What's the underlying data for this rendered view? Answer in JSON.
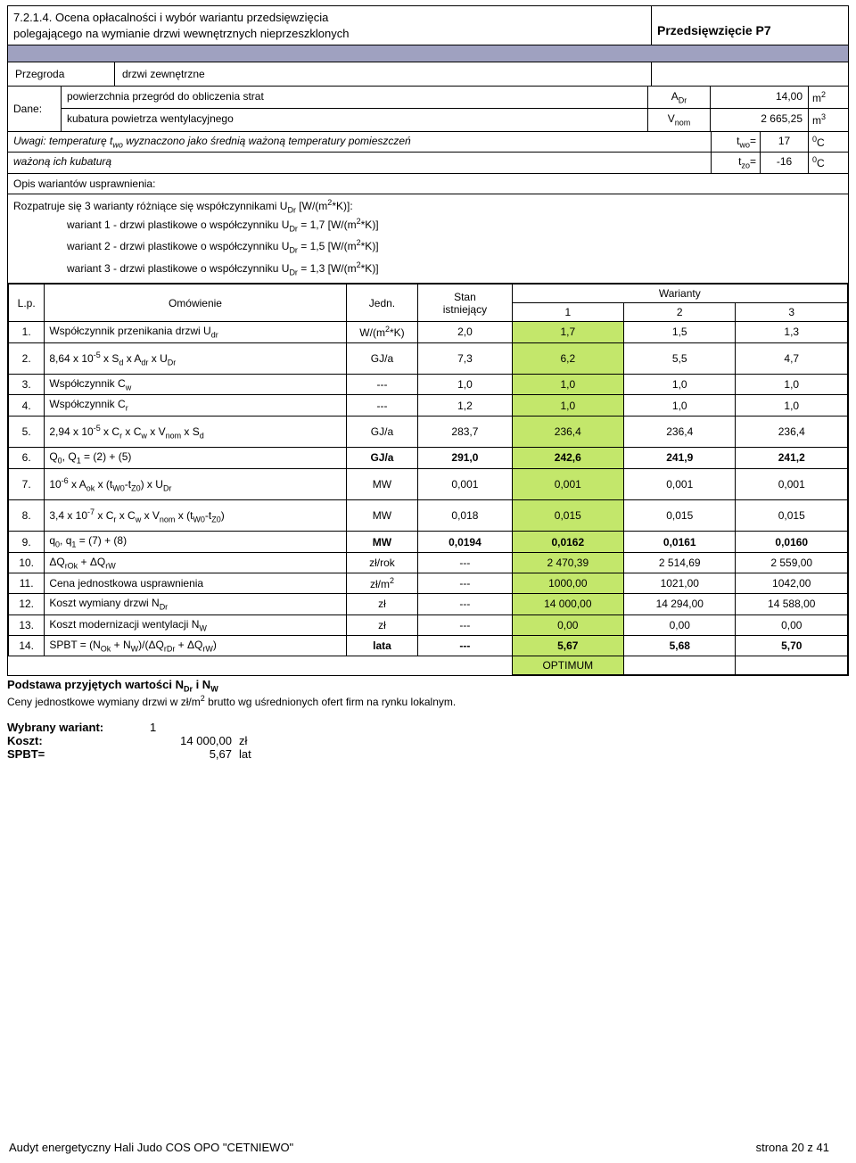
{
  "section_number": "7.2.1.4.",
  "section_title": "Ocena opłacalności i wybór wariantu przedsięwzięcia",
  "section_subtitle": "polegającego na wymianie drzwi wewnętrznych nieprzeszklonych",
  "project_label": "Przedsięwzięcie P7",
  "przegroda_label": "Przegroda",
  "przegroda_value": "drzwi zewnętrzne",
  "dane_label": "Dane:",
  "dane": [
    {
      "desc": "powierzchnia przegród do obliczenia strat",
      "sym": "A<sub>Dr</sub>",
      "val": "14,00",
      "unit": "m<sup>2</sup>"
    },
    {
      "desc": "kubatura powietrza wentylacyjnego",
      "sym": "V<sub>nom</sub>",
      "val": "2 665,25",
      "unit": "m<sup>3</sup>"
    }
  ],
  "uwagi_text": "Uwagi: temperaturę t<sub>wo</sub> wyznaczono jako średnią ważoną temperatury pomieszczeń ważoną ich kubaturą",
  "uwagi_rows": [
    {
      "sym": "t<sub>wo</sub>=",
      "val": "17",
      "unit": "<sup>0</sup>C"
    },
    {
      "sym": "t<sub>zo</sub>=",
      "val": "-16",
      "unit": "<sup>0</sup>C"
    }
  ],
  "opis_label": "Opis wariantów usprawnienia:",
  "rozpat_text": "Rozpatruje się 3 warianty różniące się współczynnikami U<sub>Dr</sub> [W/(m<sup>2</sup>*K)]:",
  "warianty_desc": [
    "wariant 1 - drzwi plastikowe o współczynniku U<sub>Dr</sub> = 1,7 [W/(m<sup>2</sup>*K)]",
    "wariant 2 - drzwi plastikowe o współczynniku U<sub>Dr</sub> = 1,5 [W/(m<sup>2</sup>*K)]",
    "wariant 3 - drzwi plastikowe o współczynniku U<sub>Dr</sub> = 1,3 [W/(m<sup>2</sup>*K)]"
  ],
  "table_headers": {
    "lp": "L.p.",
    "om": "Omówienie",
    "jedn": "Jedn.",
    "stan": "Stan istniejący",
    "war": "Warianty",
    "w1": "1",
    "w2": "2",
    "w3": "3"
  },
  "rows": [
    {
      "n": "1.",
      "om": "Współczynnik przenikania drzwi U<sub>dr</sub>",
      "jd": "W/(m<sup>2</sup>*K)",
      "s": "2,0",
      "v": [
        "1,7",
        "1,5",
        "1,3"
      ],
      "hl": [
        0
      ],
      "bold": false,
      "jsmall": true
    },
    {
      "n": "2.",
      "om": "8,64 x 10<sup>-5</sup> x S<sub>d</sub> x A<sub>dr</sub> x U<sub>Dr</sub>",
      "jd": "GJ/a",
      "s": "7,3",
      "v": [
        "6,2",
        "5,5",
        "4,7"
      ],
      "hl": [
        0
      ],
      "bold": false,
      "tall": true
    },
    {
      "n": "3.",
      "om": "Współczynnik C<sub>w</sub>",
      "jd": "---",
      "s": "1,0",
      "v": [
        "1,0",
        "1,0",
        "1,0"
      ],
      "hl": [
        0
      ],
      "bold": false
    },
    {
      "n": "4.",
      "om": "Współczynnik C<sub>r</sub>",
      "jd": "---",
      "s": "1,2",
      "v": [
        "1,0",
        "1,0",
        "1,0"
      ],
      "hl": [
        0
      ],
      "bold": false
    },
    {
      "n": "5.",
      "om": "2,94 x 10<sup>-5</sup> x C<sub>r</sub> x C<sub>w</sub> x V<sub>nom</sub> x S<sub>d</sub>",
      "jd": "GJ/a",
      "s": "283,7",
      "v": [
        "236,4",
        "236,4",
        "236,4"
      ],
      "hl": [
        0
      ],
      "bold": false,
      "tall": true
    },
    {
      "n": "6.",
      "om": "Q<sub>0</sub>, Q<sub>1</sub> = (2) + (5)",
      "jd": "GJ/a",
      "s": "291,0",
      "v": [
        "242,6",
        "241,9",
        "241,2"
      ],
      "hl": [
        0
      ],
      "bold": true
    },
    {
      "n": "7.",
      "om": "10<sup>-6</sup> x A<sub>ok</sub> x (t<sub>W0</sub>-t<sub>Z0</sub>) x U<sub>Dr</sub>",
      "jd": "MW",
      "s": "0,001",
      "v": [
        "0,001",
        "0,001",
        "0,001"
      ],
      "hl": [
        0
      ],
      "bold": false,
      "tall": true
    },
    {
      "n": "8.",
      "om": "3,4 x 10<sup>-7</sup> x C<sub>r</sub> x C<sub>w</sub> x V<sub>nom</sub> x (t<sub>W0</sub>-t<sub>Z0</sub>)",
      "jd": "MW",
      "s": "0,018",
      "v": [
        "0,015",
        "0,015",
        "0,015"
      ],
      "hl": [
        0
      ],
      "bold": false,
      "tall": true
    },
    {
      "n": "9.",
      "om": "q<sub>0</sub>, q<sub>1</sub> = (7) + (8)",
      "jd": "MW",
      "s": "0,0194",
      "v": [
        "0,0162",
        "0,0161",
        "0,0160"
      ],
      "hl": [
        0
      ],
      "bold": true
    },
    {
      "n": "10.",
      "om": "ΔQ<sub>rOk</sub> + ΔQ<sub>rW</sub>",
      "jd": "zł/rok",
      "s": "---",
      "v": [
        "2 470,39",
        "2 514,69",
        "2 559,00"
      ],
      "hl": [
        0
      ],
      "bold": false
    },
    {
      "n": "11.",
      "om": "Cena jednostkowa usprawnienia",
      "jd": "zł/m<sup>2</sup>",
      "s": "---",
      "v": [
        "1000,00",
        "1021,00",
        "1042,00"
      ],
      "hl": [
        0
      ],
      "bold": false
    },
    {
      "n": "12.",
      "om": "Koszt wymiany drzwi N<sub>Dr</sub>",
      "jd": "zł",
      "s": "---",
      "v": [
        "14 000,00",
        "14 294,00",
        "14 588,00"
      ],
      "hl": [
        0
      ],
      "bold": false
    },
    {
      "n": "13.",
      "om": "Koszt modernizacji wentylacji N<sub>W</sub>",
      "jd": "zł",
      "s": "---",
      "v": [
        "0,00",
        "0,00",
        "0,00"
      ],
      "hl": [
        0
      ],
      "bold": false
    },
    {
      "n": "14.",
      "om": "SPBT = (N<sub>Ok</sub> + N<sub>W</sub>)/(ΔQ<sub>rDr</sub> + ΔQ<sub>rW</sub>)",
      "jd": "lata",
      "s": "---",
      "v": [
        "5,67",
        "5,68",
        "5,70"
      ],
      "hl": [
        0
      ],
      "bold": true
    }
  ],
  "optimum": "OPTIMUM",
  "podstawa_h": "Podstawa przyjętych wartości N<sub>Dr</sub> i N<sub>W</sub>",
  "podstawa_txt": "Ceny jednostkowe wymiany drzwi w zł/m<sup>2</sup> brutto wg uśrednionych ofert firm na rynku lokalnym.",
  "summary": {
    "wariant_k": "Wybrany wariant:",
    "wariant_v": "1",
    "koszt_k": "Koszt:",
    "koszt_v": "14 000,00",
    "koszt_u": "zł",
    "spbt_k": "SPBT=",
    "spbt_v": "5,67",
    "spbt_u": "lat"
  },
  "footer_left": "Audyt energetyczny Hali Judo COS OPO \"CETNIEWO\"",
  "footer_right": "strona 20 z 41"
}
